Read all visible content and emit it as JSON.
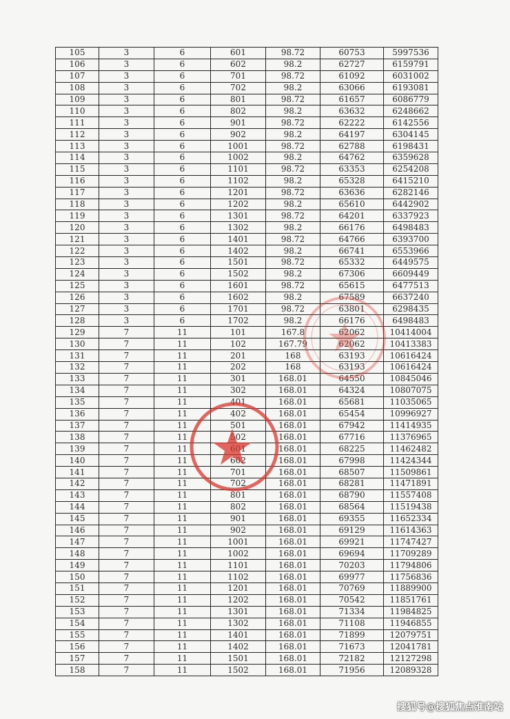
{
  "table": {
    "rows": [
      [
        "105",
        "3",
        "6",
        "601",
        "98.72",
        "60753",
        "5997536"
      ],
      [
        "106",
        "3",
        "6",
        "602",
        "98.2",
        "62727",
        "6159791"
      ],
      [
        "107",
        "3",
        "6",
        "701",
        "98.72",
        "61092",
        "6031002"
      ],
      [
        "108",
        "3",
        "6",
        "702",
        "98.2",
        "63066",
        "6193081"
      ],
      [
        "109",
        "3",
        "6",
        "801",
        "98.72",
        "61657",
        "6086779"
      ],
      [
        "110",
        "3",
        "6",
        "802",
        "98.2",
        "63632",
        "6248662"
      ],
      [
        "111",
        "3",
        "6",
        "901",
        "98.72",
        "62222",
        "6142556"
      ],
      [
        "112",
        "3",
        "6",
        "902",
        "98.2",
        "64197",
        "6304145"
      ],
      [
        "113",
        "3",
        "6",
        "1001",
        "98.72",
        "62788",
        "6198431"
      ],
      [
        "114",
        "3",
        "6",
        "1002",
        "98.2",
        "64762",
        "6359628"
      ],
      [
        "115",
        "3",
        "6",
        "1101",
        "98.72",
        "63353",
        "6254208"
      ],
      [
        "116",
        "3",
        "6",
        "1102",
        "98.2",
        "65328",
        "6415210"
      ],
      [
        "117",
        "3",
        "6",
        "1201",
        "98.72",
        "63636",
        "6282146"
      ],
      [
        "118",
        "3",
        "6",
        "1202",
        "98.2",
        "65610",
        "6442902"
      ],
      [
        "119",
        "3",
        "6",
        "1301",
        "98.72",
        "64201",
        "6337923"
      ],
      [
        "120",
        "3",
        "6",
        "1302",
        "98.2",
        "66176",
        "6498483"
      ],
      [
        "121",
        "3",
        "6",
        "1401",
        "98.72",
        "64766",
        "6393700"
      ],
      [
        "122",
        "3",
        "6",
        "1402",
        "98.2",
        "66741",
        "6553966"
      ],
      [
        "123",
        "3",
        "6",
        "1501",
        "98.72",
        "65332",
        "6449575"
      ],
      [
        "124",
        "3",
        "6",
        "1502",
        "98.2",
        "67306",
        "6609449"
      ],
      [
        "125",
        "3",
        "6",
        "1601",
        "98.72",
        "65615",
        "6477513"
      ],
      [
        "126",
        "3",
        "6",
        "1602",
        "98.2",
        "67589",
        "6637240"
      ],
      [
        "127",
        "3",
        "6",
        "1701",
        "98.72",
        "63801",
        "6298435"
      ],
      [
        "128",
        "3",
        "6",
        "1702",
        "98.2",
        "66176",
        "6498483"
      ],
      [
        "129",
        "7",
        "11",
        "101",
        "167.8",
        "62062",
        "10414004"
      ],
      [
        "130",
        "7",
        "11",
        "102",
        "167.79",
        "62062",
        "10413383"
      ],
      [
        "131",
        "7",
        "11",
        "201",
        "168",
        "63193",
        "10616424"
      ],
      [
        "132",
        "7",
        "11",
        "202",
        "168",
        "63193",
        "10616424"
      ],
      [
        "133",
        "7",
        "11",
        "301",
        "168.01",
        "64550",
        "10845046"
      ],
      [
        "134",
        "7",
        "11",
        "302",
        "168.01",
        "64324",
        "10807075"
      ],
      [
        "135",
        "7",
        "11",
        "401",
        "168.01",
        "65681",
        "11035065"
      ],
      [
        "136",
        "7",
        "11",
        "402",
        "168.01",
        "65454",
        "10996927"
      ],
      [
        "137",
        "7",
        "11",
        "501",
        "168.01",
        "67942",
        "11414935"
      ],
      [
        "138",
        "7",
        "11",
        "502",
        "168.01",
        "67716",
        "11376965"
      ],
      [
        "139",
        "7",
        "11",
        "601",
        "168.01",
        "68225",
        "11462482"
      ],
      [
        "140",
        "7",
        "11",
        "602",
        "168.01",
        "67998",
        "11424344"
      ],
      [
        "141",
        "7",
        "11",
        "701",
        "168.01",
        "68507",
        "11509861"
      ],
      [
        "142",
        "7",
        "11",
        "702",
        "168.01",
        "68281",
        "11471891"
      ],
      [
        "143",
        "7",
        "11",
        "801",
        "168.01",
        "68790",
        "11557408"
      ],
      [
        "144",
        "7",
        "11",
        "802",
        "168.01",
        "68564",
        "11519438"
      ],
      [
        "145",
        "7",
        "11",
        "901",
        "168.01",
        "69355",
        "11652334"
      ],
      [
        "146",
        "7",
        "11",
        "902",
        "168.01",
        "69129",
        "11614363"
      ],
      [
        "147",
        "7",
        "11",
        "1001",
        "168.01",
        "69921",
        "11747427"
      ],
      [
        "148",
        "7",
        "11",
        "1002",
        "168.01",
        "69694",
        "11709289"
      ],
      [
        "149",
        "7",
        "11",
        "1101",
        "168.01",
        "70203",
        "11794806"
      ],
      [
        "150",
        "7",
        "11",
        "1102",
        "168.01",
        "69977",
        "11756836"
      ],
      [
        "151",
        "7",
        "11",
        "1201",
        "168.01",
        "70769",
        "11889900"
      ],
      [
        "152",
        "7",
        "11",
        "1202",
        "168.01",
        "70542",
        "11851761"
      ],
      [
        "153",
        "7",
        "11",
        "1301",
        "168.01",
        "71334",
        "11984825"
      ],
      [
        "154",
        "7",
        "11",
        "1302",
        "168.01",
        "71108",
        "11946855"
      ],
      [
        "155",
        "7",
        "11",
        "1401",
        "168.01",
        "71899",
        "12079751"
      ],
      [
        "156",
        "7",
        "11",
        "1402",
        "168.01",
        "71673",
        "12041781"
      ],
      [
        "157",
        "7",
        "11",
        "1501",
        "168.01",
        "72182",
        "12127298"
      ],
      [
        "158",
        "7",
        "11",
        "1502",
        "168.01",
        "71956",
        "12089328"
      ]
    ]
  },
  "stamps": {
    "color": "#d9352e"
  },
  "watermark": "搜狐号@搜狐焦点淮南站"
}
